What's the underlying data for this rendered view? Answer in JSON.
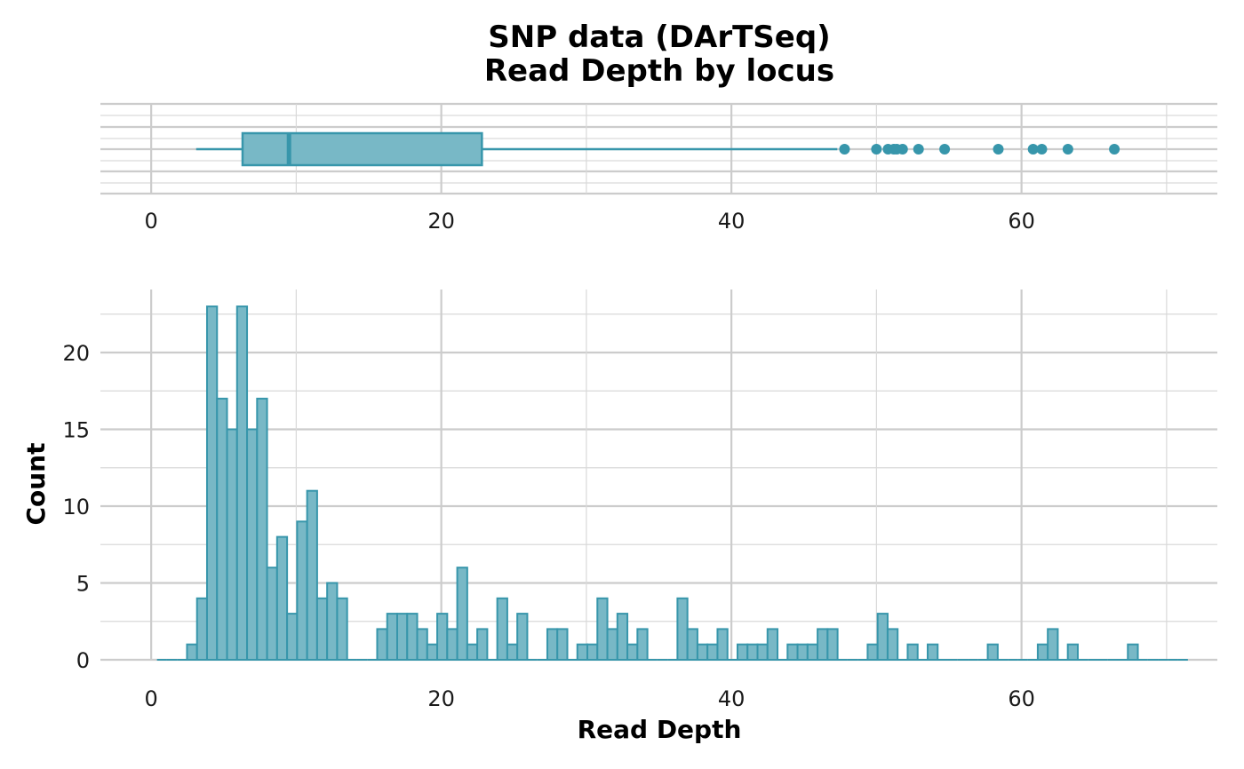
{
  "chart_data": [
    {
      "type": "box",
      "title": "SNP data (DArTSeq)",
      "subtitle": "Read Depth by locus",
      "xlim": [
        -3.5,
        73.5
      ],
      "x_ticks": [
        0,
        20,
        40,
        60
      ],
      "whisker_low": 3.1,
      "q1": 6.3,
      "median": 9.5,
      "q3": 22.8,
      "whisker_high": 47.3,
      "outliers": [
        47.8,
        50.0,
        50.8,
        51.2,
        51.4,
        51.8,
        52.9,
        54.7,
        58.4,
        60.8,
        61.4,
        63.2,
        66.4
      ],
      "fill_color": "#78b8c6",
      "line_color": "#3796ab"
    },
    {
      "type": "histogram",
      "xlabel": "Read Depth",
      "ylabel": "Count",
      "xlim": [
        -3.5,
        73.5
      ],
      "ylim": [
        0,
        23
      ],
      "x_ticks": [
        0,
        20,
        40,
        60
      ],
      "y_ticks": [
        0,
        5,
        10,
        15,
        20
      ],
      "bin_start": 0.4,
      "bin_width": 0.69,
      "counts": [
        0,
        0,
        0,
        1,
        4,
        23,
        17,
        15,
        23,
        15,
        17,
        6,
        8,
        3,
        9,
        11,
        4,
        5,
        4,
        0,
        0,
        0,
        2,
        3,
        3,
        3,
        2,
        1,
        3,
        2,
        6,
        1,
        2,
        0,
        4,
        1,
        3,
        0,
        0,
        2,
        2,
        0,
        1,
        1,
        4,
        2,
        3,
        1,
        2,
        0,
        0,
        0,
        4,
        2,
        1,
        1,
        2,
        0,
        1,
        1,
        1,
        2,
        0,
        1,
        1,
        1,
        2,
        2,
        0,
        0,
        0,
        1,
        3,
        2,
        0,
        1,
        0,
        1,
        0,
        0,
        0,
        0,
        0,
        1,
        0,
        0,
        0,
        0,
        1,
        2,
        0,
        1,
        0,
        0,
        0,
        0,
        0,
        1,
        0,
        0,
        0,
        0,
        0
      ],
      "fill_color": "#78b8c6",
      "line_color": "#3796ab"
    }
  ]
}
